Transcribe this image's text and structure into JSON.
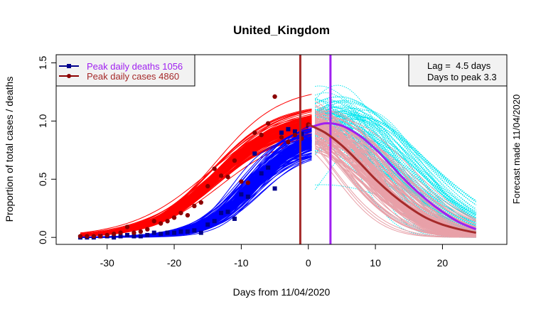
{
  "chart_data": {
    "type": "line",
    "title": "United_Kingdom",
    "xlabel": "Days from 11/04/2020",
    "ylabel": "Proportion of total cases / deaths",
    "side_label": "Forecast made 11/04/2020",
    "xlim": [
      -37.6,
      29.6
    ],
    "ylim": [
      -0.06,
      1.57
    ],
    "x_ticks": [
      -30,
      -20,
      -10,
      0,
      10,
      20
    ],
    "x_tick_labels": [
      "-30",
      "-20",
      "-10",
      "0",
      "10",
      "20"
    ],
    "y_ticks": [
      0.0,
      0.5,
      1.0,
      1.5
    ],
    "y_tick_labels": [
      "0.0",
      "0.5",
      "1.0",
      "1.5"
    ],
    "grid": false,
    "legend": {
      "placement": "top-left",
      "entries": [
        {
          "label": "Peak daily deaths 1056",
          "color": "#a020f0",
          "line_color": "#00008b",
          "marker": "square"
        },
        {
          "label": "Peak daily cases 4860",
          "color": "#a52a2a",
          "line_color": "#8b0000",
          "marker": "circle"
        }
      ]
    },
    "info_box": {
      "placement": "top-right",
      "lines": [
        "Lag =  4.5 days",
        "Days to peak 3.3"
      ]
    },
    "vlines": [
      {
        "name": "cases-peak-line",
        "x": -1.2,
        "color": "#a52a2a"
      },
      {
        "name": "deaths-peak-line",
        "x": 3.3,
        "color": "#a020f0"
      }
    ],
    "colors": {
      "cases_fit": "#ff0000",
      "deaths_fit": "#0000ff",
      "cases_points": "#8b0000",
      "deaths_points": "#00008b",
      "forecast_cases_ensemble": "#e8a0a8",
      "forecast_deaths_ensemble": "#00e5ee",
      "forecast_cases_mean": "#a52a2a",
      "forecast_deaths_mean": "#a020f0"
    },
    "series": [
      {
        "name": "Observed cases (proportion)",
        "x": [
          -34,
          -33,
          -32,
          -31,
          -30,
          -29,
          -28,
          -27,
          -26,
          -25,
          -24,
          -23,
          -22,
          -21,
          -20,
          -19,
          -18,
          -17,
          -16,
          -15,
          -14,
          -13,
          -12,
          -11,
          -10,
          -9,
          -8,
          -7,
          -6,
          -5,
          -4,
          -3,
          -2,
          -1,
          0
        ],
        "values": [
          0.01,
          0.01,
          0.01,
          0.01,
          0.02,
          0.03,
          0.04,
          0.09,
          0.04,
          0.05,
          0.07,
          0.14,
          0.12,
          0.14,
          0.17,
          0.21,
          0.19,
          0.27,
          0.3,
          0.44,
          0.59,
          0.53,
          0.52,
          0.66,
          0.48,
          0.47,
          0.9,
          0.88,
          0.98,
          1.21,
          0.86,
          0.82,
          0.88,
          0.85,
          0.97
        ]
      },
      {
        "name": "Observed deaths (proportion)",
        "x": [
          -34,
          -33,
          -32,
          -31,
          -30,
          -29,
          -28,
          -27,
          -26,
          -25,
          -24,
          -23,
          -22,
          -21,
          -20,
          -19,
          -18,
          -17,
          -16,
          -15,
          -14,
          -13,
          -12,
          -11,
          -10,
          -9,
          -8,
          -7,
          -6,
          -5,
          -4,
          -3,
          -2,
          -1,
          0
        ],
        "values": [
          0.0,
          0.0,
          0.0,
          0.01,
          0.01,
          0.0,
          0.01,
          0.02,
          0.01,
          0.01,
          0.02,
          0.04,
          0.03,
          0.04,
          0.04,
          0.05,
          0.05,
          0.06,
          0.04,
          0.11,
          0.14,
          0.21,
          0.22,
          0.16,
          0.37,
          0.35,
          0.72,
          0.55,
          0.6,
          0.42,
          0.9,
          0.93,
          0.91,
          0.89,
          0.96
        ]
      },
      {
        "name": "Forecast cases mean",
        "x": [
          0,
          2.5,
          5,
          7.5,
          10,
          12.5,
          15,
          17.5,
          20,
          22.5,
          25
        ],
        "values": [
          0.97,
          0.9,
          0.79,
          0.65,
          0.5,
          0.37,
          0.26,
          0.17,
          0.11,
          0.07,
          0.04
        ]
      },
      {
        "name": "Forecast deaths mean",
        "x": [
          0,
          2.5,
          5,
          7.5,
          10,
          12.5,
          15,
          17.5,
          20,
          22.5,
          25
        ],
        "values": [
          0.94,
          0.98,
          0.96,
          0.88,
          0.76,
          0.61,
          0.46,
          0.33,
          0.22,
          0.13,
          0.07
        ]
      }
    ]
  }
}
